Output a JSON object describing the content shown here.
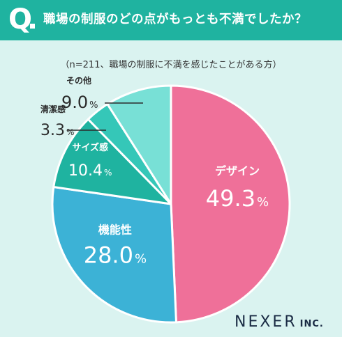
{
  "header": {
    "q_mark": "Q",
    "question": "職場の制服のどの点がもっとも不満でしたか？"
  },
  "chart_data": {
    "type": "pie",
    "subtitle": "（n=211、職場の制服に不満を感じたことがある方）",
    "unit": "%",
    "slices": [
      {
        "label": "デザイン",
        "value": 49.3,
        "value_text": "49.3",
        "color": "#ef7099"
      },
      {
        "label": "機能性",
        "value": 28.0,
        "value_text": "28.0",
        "color": "#3cb2d6"
      },
      {
        "label": "サイズ感",
        "value": 10.4,
        "value_text": "10.4",
        "color": "#1fb3a0"
      },
      {
        "label": "清潔感",
        "value": 3.3,
        "value_text": "3.3",
        "color": "#35c7b8"
      },
      {
        "label": "その他",
        "value": 9.0,
        "value_text": "9.0",
        "color": "#78e0d6"
      }
    ]
  },
  "logo": {
    "name": "NEXER",
    "suffix": "INC."
  }
}
